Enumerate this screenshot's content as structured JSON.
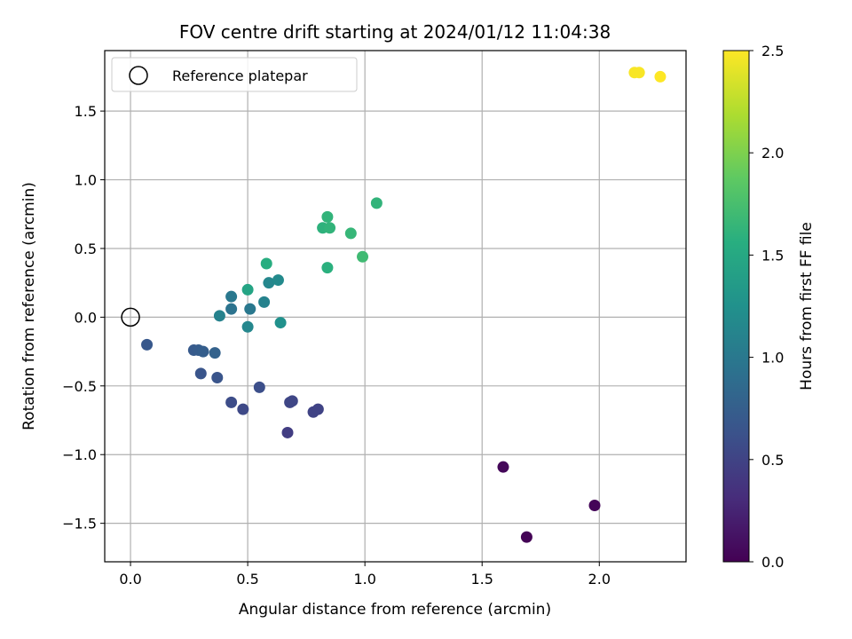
{
  "chart_data": {
    "type": "scatter",
    "title": "FOV centre drift starting at 2024/01/12 11:04:38",
    "xlabel": "Angular distance from reference (arcmin)",
    "ylabel": "Rotation from reference (arcmin)",
    "xlim": [
      -0.11,
      2.37
    ],
    "ylim": [
      -1.78,
      1.94
    ],
    "xticks": [
      0.0,
      0.5,
      1.0,
      1.5,
      2.0
    ],
    "xtick_labels": [
      "0.0",
      "0.5",
      "1.0",
      "1.5",
      "2.0"
    ],
    "yticks": [
      -1.5,
      -1.0,
      -0.5,
      0.0,
      0.5,
      1.0,
      1.5
    ],
    "ytick_labels": [
      "−1.5",
      "−1.0",
      "−0.5",
      "0.0",
      "0.5",
      "1.0",
      "1.5"
    ],
    "grid": true,
    "colormap": "viridis",
    "colorbar": {
      "label": "Hours from first FF file",
      "range": [
        0.0,
        2.5
      ],
      "ticks": [
        0.0,
        0.5,
        1.0,
        1.5,
        2.0,
        2.5
      ],
      "tick_labels": [
        "0.0",
        "0.5",
        "1.0",
        "1.5",
        "2.0",
        "2.5"
      ]
    },
    "legend": {
      "position": "top-left",
      "entries": [
        {
          "label": "Reference platepar",
          "marker": "hollow-circle"
        }
      ]
    },
    "reference_point": {
      "x": 0.0,
      "y": 0.0
    },
    "points": [
      {
        "x": 1.69,
        "y": -1.6,
        "c": 0.02
      },
      {
        "x": 1.98,
        "y": -1.37,
        "c": 0.03
      },
      {
        "x": 1.59,
        "y": -1.09,
        "c": 0.04
      },
      {
        "x": 0.67,
        "y": -0.84,
        "c": 0.45
      },
      {
        "x": 0.78,
        "y": -0.69,
        "c": 0.5
      },
      {
        "x": 0.8,
        "y": -0.67,
        "c": 0.5
      },
      {
        "x": 0.68,
        "y": -0.62,
        "c": 0.52
      },
      {
        "x": 0.69,
        "y": -0.61,
        "c": 0.52
      },
      {
        "x": 0.48,
        "y": -0.67,
        "c": 0.55
      },
      {
        "x": 0.43,
        "y": -0.62,
        "c": 0.58
      },
      {
        "x": 0.55,
        "y": -0.51,
        "c": 0.6
      },
      {
        "x": 0.37,
        "y": -0.44,
        "c": 0.65
      },
      {
        "x": 0.3,
        "y": -0.41,
        "c": 0.65
      },
      {
        "x": 0.07,
        "y": -0.2,
        "c": 0.68
      },
      {
        "x": 0.27,
        "y": -0.24,
        "c": 0.7
      },
      {
        "x": 0.29,
        "y": -0.24,
        "c": 0.72
      },
      {
        "x": 0.31,
        "y": -0.25,
        "c": 0.74
      },
      {
        "x": 0.36,
        "y": -0.26,
        "c": 0.78
      },
      {
        "x": 0.43,
        "y": 0.06,
        "c": 0.95
      },
      {
        "x": 0.51,
        "y": 0.06,
        "c": 1.0
      },
      {
        "x": 0.43,
        "y": 0.15,
        "c": 1.0
      },
      {
        "x": 0.38,
        "y": 0.01,
        "c": 1.1
      },
      {
        "x": 0.57,
        "y": 0.11,
        "c": 1.1
      },
      {
        "x": 0.5,
        "y": -0.07,
        "c": 1.15
      },
      {
        "x": 0.59,
        "y": 0.25,
        "c": 1.15
      },
      {
        "x": 0.63,
        "y": 0.27,
        "c": 1.18
      },
      {
        "x": 0.64,
        "y": -0.04,
        "c": 1.25
      },
      {
        "x": 0.5,
        "y": 0.2,
        "c": 1.45
      },
      {
        "x": 0.58,
        "y": 0.39,
        "c": 1.55
      },
      {
        "x": 0.84,
        "y": 0.36,
        "c": 1.58
      },
      {
        "x": 0.82,
        "y": 0.65,
        "c": 1.6
      },
      {
        "x": 0.84,
        "y": 0.73,
        "c": 1.62
      },
      {
        "x": 0.85,
        "y": 0.65,
        "c": 1.62
      },
      {
        "x": 0.94,
        "y": 0.61,
        "c": 1.65
      },
      {
        "x": 0.99,
        "y": 0.44,
        "c": 1.7
      },
      {
        "x": 1.05,
        "y": 0.83,
        "c": 1.62
      },
      {
        "x": 2.15,
        "y": 1.78,
        "c": 2.48
      },
      {
        "x": 2.17,
        "y": 1.78,
        "c": 2.48
      },
      {
        "x": 2.26,
        "y": 1.75,
        "c": 2.5
      }
    ]
  }
}
